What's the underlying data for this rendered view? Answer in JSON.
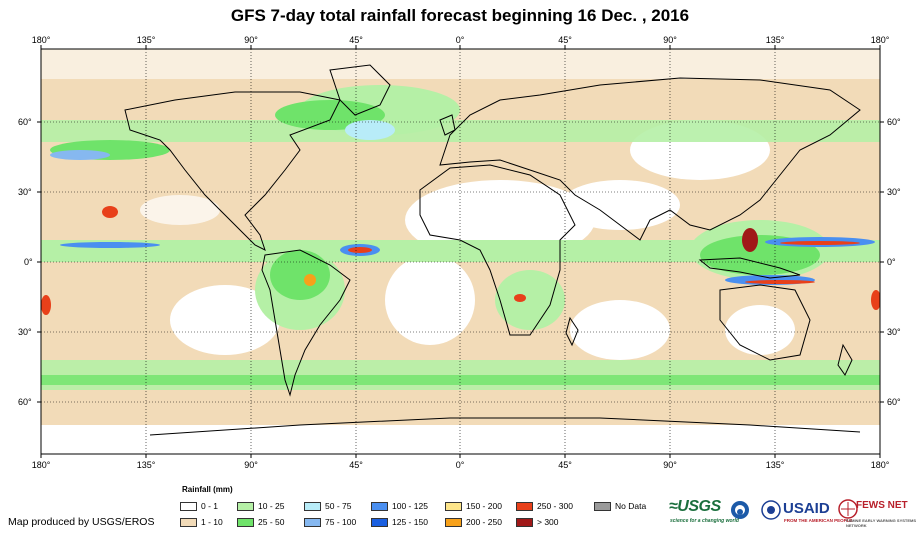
{
  "title": "GFS 7-day total rainfall forecast beginning 16 Dec. , 2016",
  "top_lon_labels": [
    "180°",
    "135°",
    "90°",
    "45°",
    "0°",
    "45°",
    "90°",
    "135°",
    "180°"
  ],
  "bottom_lon_labels": [
    "180°",
    "135°",
    "90°",
    "45°",
    "0°",
    "45°",
    "90°",
    "135°",
    "180°"
  ],
  "lat_labels": [
    "60°",
    "30°",
    "0°",
    "30°",
    "60°"
  ],
  "legend": {
    "title": "Rainfall (mm)",
    "items": [
      {
        "label": "0 - 1",
        "color": "#ffffff"
      },
      {
        "label": "1 - 10",
        "color": "#f2dbb8"
      },
      {
        "label": "10 - 25",
        "color": "#b5f0a6"
      },
      {
        "label": "25 - 50",
        "color": "#6fe36a"
      },
      {
        "label": "50 - 75",
        "color": "#b8ecf8"
      },
      {
        "label": "75 - 100",
        "color": "#86b8f0"
      },
      {
        "label": "100 - 125",
        "color": "#4a8ff0"
      },
      {
        "label": "125 - 150",
        "color": "#1a5fe0"
      },
      {
        "label": "150 - 200",
        "color": "#fde58a"
      },
      {
        "label": "200 - 250",
        "color": "#f7a11a"
      },
      {
        "label": "250 - 300",
        "color": "#e8401a"
      },
      {
        "label": "> 300",
        "color": "#a01818"
      },
      {
        "label": "No Data",
        "color": "#9a9a9a"
      }
    ]
  },
  "producer_text": "Map produced by USGS/EROS",
  "logos": {
    "usgs": "≈USGS",
    "usgs_sub": "science for a changing world",
    "usaid": "USAID",
    "usaid_sub": "FROM THE AMERICAN PEOPLE",
    "fews": "FEWS NET",
    "fews_sub": "FAMINE EARLY WARNING SYSTEMS NETWORK"
  }
}
